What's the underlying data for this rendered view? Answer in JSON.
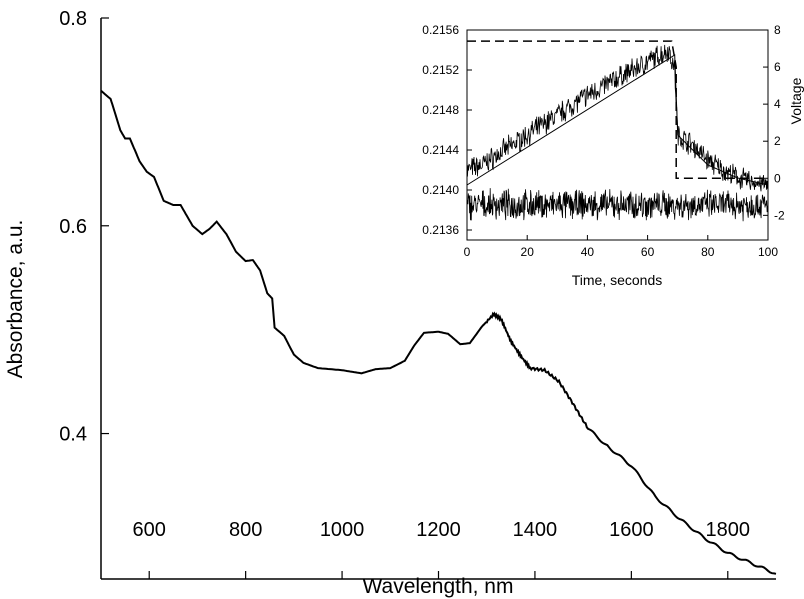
{
  "chart_data": [
    {
      "type": "line",
      "xlabel": "Wavelength, nm",
      "ylabel": "Absorbance, a.u.",
      "xlim": [
        500,
        1900
      ],
      "ylim": [
        0.26,
        0.8
      ],
      "xticks": [
        600,
        800,
        1000,
        1200,
        1400,
        1600,
        1800
      ],
      "yticks": [
        0.4,
        0.6,
        0.8
      ],
      "ytick_labels": [
        "0.4",
        "0.6",
        "0.8"
      ],
      "grid": false,
      "legend": "none",
      "series": [
        {
          "color": "#000000",
          "points": [
            [
              500,
              0.73
            ],
            [
              520,
              0.722
            ],
            [
              540,
              0.692
            ],
            [
              550,
              0.684
            ],
            [
              560,
              0.684
            ],
            [
              580,
              0.662
            ],
            [
              595,
              0.652
            ],
            [
              610,
              0.647
            ],
            [
              630,
              0.624
            ],
            [
              650,
              0.62
            ],
            [
              665,
              0.62
            ],
            [
              690,
              0.6
            ],
            [
              710,
              0.592
            ],
            [
              725,
              0.597
            ],
            [
              740,
              0.604
            ],
            [
              760,
              0.592
            ],
            [
              780,
              0.575
            ],
            [
              800,
              0.566
            ],
            [
              815,
              0.567
            ],
            [
              830,
              0.557
            ],
            [
              845,
              0.535
            ],
            [
              855,
              0.53
            ],
            [
              860,
              0.502
            ],
            [
              880,
              0.494
            ],
            [
              900,
              0.476
            ],
            [
              920,
              0.468
            ],
            [
              950,
              0.463
            ],
            [
              1000,
              0.461
            ],
            [
              1040,
              0.458
            ],
            [
              1070,
              0.462
            ],
            [
              1100,
              0.463
            ],
            [
              1130,
              0.47
            ],
            [
              1150,
              0.485
            ],
            [
              1170,
              0.497
            ],
            [
              1200,
              0.498
            ],
            [
              1220,
              0.496
            ],
            [
              1245,
              0.486
            ],
            [
              1265,
              0.487
            ],
            [
              1290,
              0.503
            ],
            [
              1315,
              0.515
            ],
            [
              1330,
              0.51
            ],
            [
              1350,
              0.489
            ],
            [
              1370,
              0.475
            ],
            [
              1390,
              0.463
            ],
            [
              1420,
              0.461
            ],
            [
              1450,
              0.45
            ],
            [
              1480,
              0.428
            ],
            [
              1510,
              0.405
            ],
            [
              1550,
              0.388
            ],
            [
              1600,
              0.369
            ],
            [
              1650,
              0.339
            ],
            [
              1700,
              0.318
            ],
            [
              1750,
              0.3
            ],
            [
              1800,
              0.285
            ],
            [
              1850,
              0.275
            ],
            [
              1900,
              0.265
            ]
          ]
        }
      ]
    },
    {
      "type": "line",
      "xlabel": "Time, seconds",
      "ylabel_right": "Voltage",
      "xlim": [
        0,
        100
      ],
      "ylim": [
        0.2135,
        0.2156
      ],
      "y2lim": [
        -3.33,
        8
      ],
      "xticks": [
        0,
        20,
        40,
        60,
        80,
        100
      ],
      "yticks": [
        0.2136,
        0.214,
        0.2144,
        0.2148,
        0.2152,
        0.2156
      ],
      "yticks_right": [
        -2,
        0,
        2,
        4,
        6,
        8
      ],
      "grid": false,
      "legend": "none",
      "series": [
        {
          "style": "noisy-signal",
          "axis": "left",
          "points": [
            [
              0,
              0.2142
            ],
            [
              5,
              0.21425
            ],
            [
              10,
              0.21435
            ],
            [
              20,
              0.21455
            ],
            [
              30,
              0.21475
            ],
            [
              40,
              0.21495
            ],
            [
              50,
              0.21512
            ],
            [
              60,
              0.21528
            ],
            [
              67,
              0.2154
            ],
            [
              69,
              0.2152
            ],
            [
              70,
              0.21455
            ],
            [
              75,
              0.21445
            ],
            [
              80,
              0.2143
            ],
            [
              85,
              0.2142
            ],
            [
              90,
              0.21412
            ],
            [
              95,
              0.21408
            ],
            [
              100,
              0.21405
            ]
          ]
        },
        {
          "style": "fit",
          "axis": "left",
          "points": [
            [
              0,
              0.21405
            ],
            [
              69,
              0.21535
            ],
            [
              70,
              0.21455
            ],
            [
              80,
              0.21425
            ],
            [
              90,
              0.21412
            ],
            [
              100,
              0.21405
            ]
          ]
        },
        {
          "style": "dashed",
          "axis": "right",
          "points": [
            [
              0,
              7.4
            ],
            [
              68,
              7.4
            ],
            [
              69.5,
              6.0
            ],
            [
              69.5,
              0
            ],
            [
              100,
              0
            ]
          ]
        },
        {
          "style": "noise",
          "axis": "left",
          "points": [
            [
              0,
              0.21385
            ],
            [
              100,
              0.21385
            ]
          ]
        }
      ]
    }
  ]
}
